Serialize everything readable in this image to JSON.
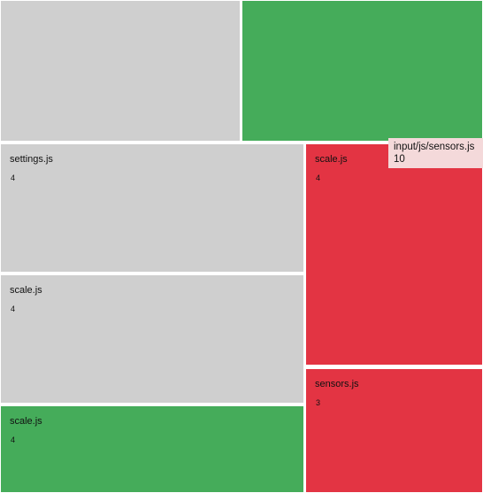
{
  "colors": {
    "neutral": "#cfcfcf",
    "green": "#45ac5a",
    "red": "#e33443",
    "tooltip_bg": "#f4d9da"
  },
  "tiles": [
    {
      "name": "",
      "value": "",
      "status": "neutral"
    },
    {
      "name": "",
      "value": "",
      "status": "green"
    },
    {
      "name": "settings.js",
      "value": "4",
      "status": "neutral"
    },
    {
      "name": "scale.js",
      "value": "4",
      "status": "neutral"
    },
    {
      "name": "scale.js",
      "value": "4",
      "status": "green"
    },
    {
      "name": "scale.js",
      "value": "4",
      "status": "red"
    },
    {
      "name": "sensors.js",
      "value": "3",
      "status": "red"
    }
  ],
  "tooltip": {
    "path": "input/js/sensors.js",
    "value": "10"
  }
}
